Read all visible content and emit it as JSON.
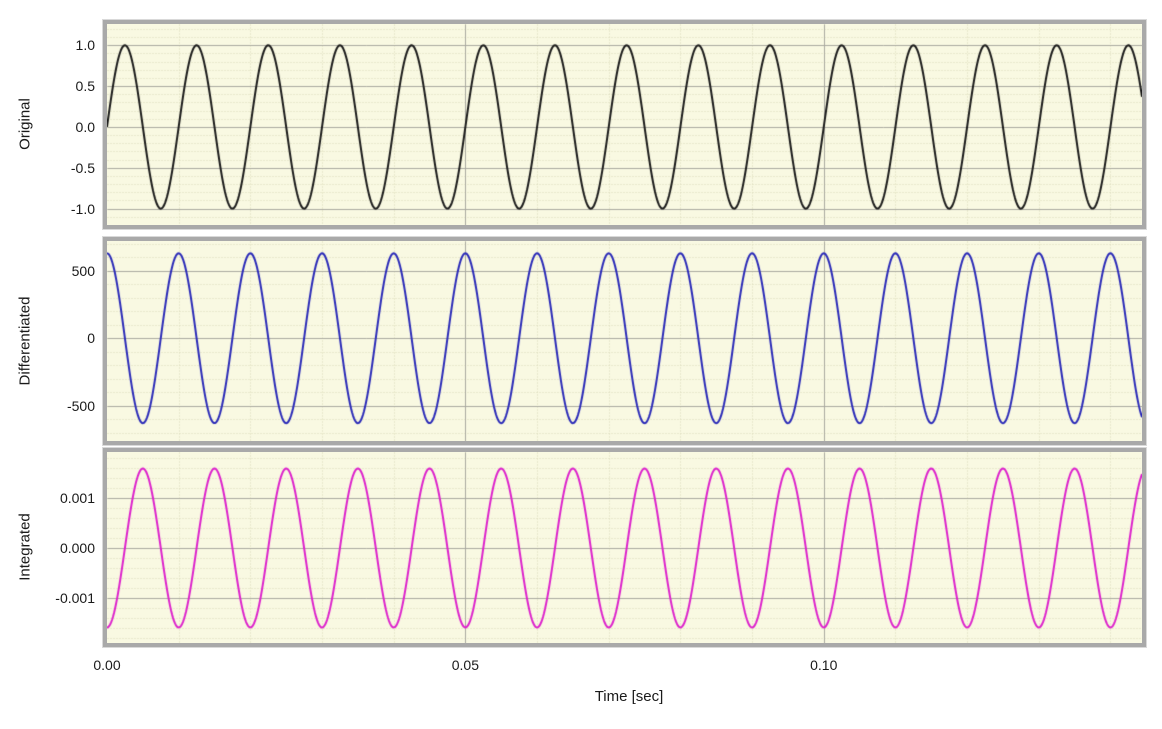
{
  "colors": {
    "figure_background": "#ffffff",
    "plot_background": "#f9f9e2",
    "grid_minor": "#d9d9b8",
    "grid_major": "#aaaaa0",
    "frame": "#a9a9a9",
    "text": "#1a1a1a",
    "original_line": "#1a1a1a",
    "differentiated_line": "#2a2ab8",
    "integrated_line": "#dd22cc"
  },
  "chart_data": {
    "type": "line",
    "xlabel": "Time [sec]",
    "x_range_sec": [
      0,
      0.1444
    ],
    "x_minor_step": 0.01,
    "x_ticks": [
      {
        "value": 0.0,
        "label": "0.00"
      },
      {
        "value": 0.05,
        "label": "0.05"
      },
      {
        "value": 0.1,
        "label": "0.10"
      }
    ],
    "signal_frequency_hz": 100,
    "grid": "on",
    "legend": "none",
    "panels": [
      {
        "name": "Original",
        "ylabel": "Original",
        "line_color": "#1a1a1a",
        "waveform": "sine",
        "amplitude": 1.0,
        "phase_deg": 0,
        "ylim": [
          -1.2,
          1.26
        ],
        "y_minor_step": 0.1,
        "y_ticks": [
          {
            "value": 1.0,
            "label": "1.0"
          },
          {
            "value": 0.5,
            "label": "0.5"
          },
          {
            "value": 0.0,
            "label": "0.0"
          },
          {
            "value": -0.5,
            "label": "-0.5"
          },
          {
            "value": -1.0,
            "label": "-1.0"
          }
        ]
      },
      {
        "name": "Differentiated",
        "ylabel": "Differentiated",
        "line_color": "#2a2ab8",
        "waveform": "cosine",
        "amplitude": 628.3,
        "phase_deg": 90,
        "ylim": [
          -760,
          719
        ],
        "y_minor_step": 100,
        "y_ticks": [
          {
            "value": 500,
            "label": "500"
          },
          {
            "value": 0,
            "label": "0"
          },
          {
            "value": -500,
            "label": "-500"
          }
        ]
      },
      {
        "name": "Integrated",
        "ylabel": "Integrated",
        "line_color": "#dd22cc",
        "waveform": "negative-cosine",
        "amplitude": 0.00159,
        "phase_deg": -90,
        "ylim": [
          -0.0019,
          0.00192
        ],
        "y_minor_step": 0.0002,
        "y_ticks": [
          {
            "value": 0.001,
            "label": "0.001"
          },
          {
            "value": 0.0,
            "label": "0.000"
          },
          {
            "value": -0.001,
            "label": "-0.001"
          }
        ]
      }
    ]
  }
}
